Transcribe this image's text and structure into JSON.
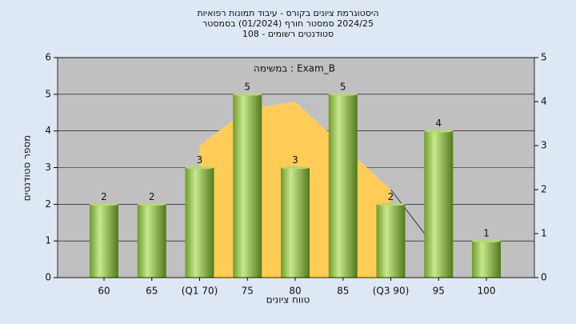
{
  "chart_data": {
    "type": "bar",
    "title_lines": [
      "היסטוגרמת ציונים בקורס - עיבוד תמונות רפואיות",
      "2024/25 סמסטר חורף  (01/2024)  בסמסטר",
      "סטודנטים רשומים - 108"
    ],
    "annotation": "Exam_B : במשימה",
    "x_label": "טווח ציונים",
    "y_label": "מספר סטודנטים",
    "categories": [
      "60",
      "65",
      "(Q1 70)",
      "75",
      "80",
      "85",
      "(Q3 90)",
      "95",
      "100"
    ],
    "series": [
      {
        "type": "area",
        "color": "#ffcc55",
        "values": [
          null,
          null,
          3.6,
          4.6,
          4.8,
          3.6,
          2.4,
          null,
          null
        ]
      },
      {
        "type": "line",
        "color": "#333333",
        "values": [
          null,
          null,
          null,
          null,
          null,
          null,
          2.4,
          0.7,
          null
        ]
      },
      {
        "type": "bar",
        "color": "#8fc24a",
        "values": [
          2,
          2,
          3,
          5,
          3,
          5,
          2,
          4,
          1
        ]
      }
    ],
    "ylim": [
      0,
      6
    ],
    "yticks": [
      0,
      1,
      2,
      3,
      4,
      5,
      6
    ],
    "y2lim": [
      0,
      5
    ],
    "y2ticks": [
      0,
      1,
      2,
      3,
      4,
      5
    ],
    "grid": true
  }
}
